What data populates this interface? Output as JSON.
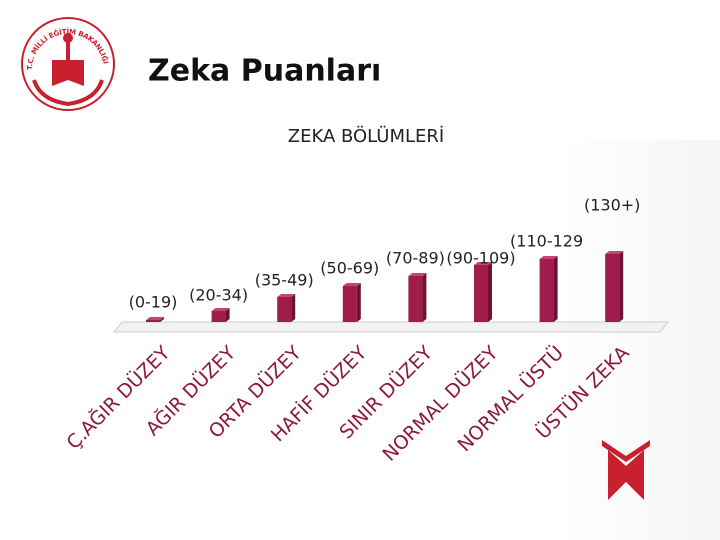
{
  "header": {
    "title": "Zeka Puanları",
    "logo_text": "T.C. MİLLİ EĞİTİM BAKANLIĞI"
  },
  "chart_data": {
    "type": "bar",
    "title": "ZEKA BÖLÜMLERİ",
    "categories": [
      "Ç.AĞIR DÜZEY",
      "AĞIR DÜZEY",
      "ORTA DÜZEY",
      "HAFİF DÜZEY",
      "SINIR DÜZEY",
      "NORMAL DÜZEY",
      "NORMAL ÜSTÜ",
      "ÜSTÜN ZEKA"
    ],
    "ranges": [
      "(0-19)",
      "(20-34)",
      "(35-49)",
      "(50-69)",
      "(70-89)",
      "(90-109)",
      "(110-129",
      "(130+)"
    ],
    "values": [
      2,
      11,
      25,
      36,
      46,
      57,
      63,
      68
    ],
    "color": "#a01c4c",
    "ylim": [
      0,
      70
    ]
  }
}
